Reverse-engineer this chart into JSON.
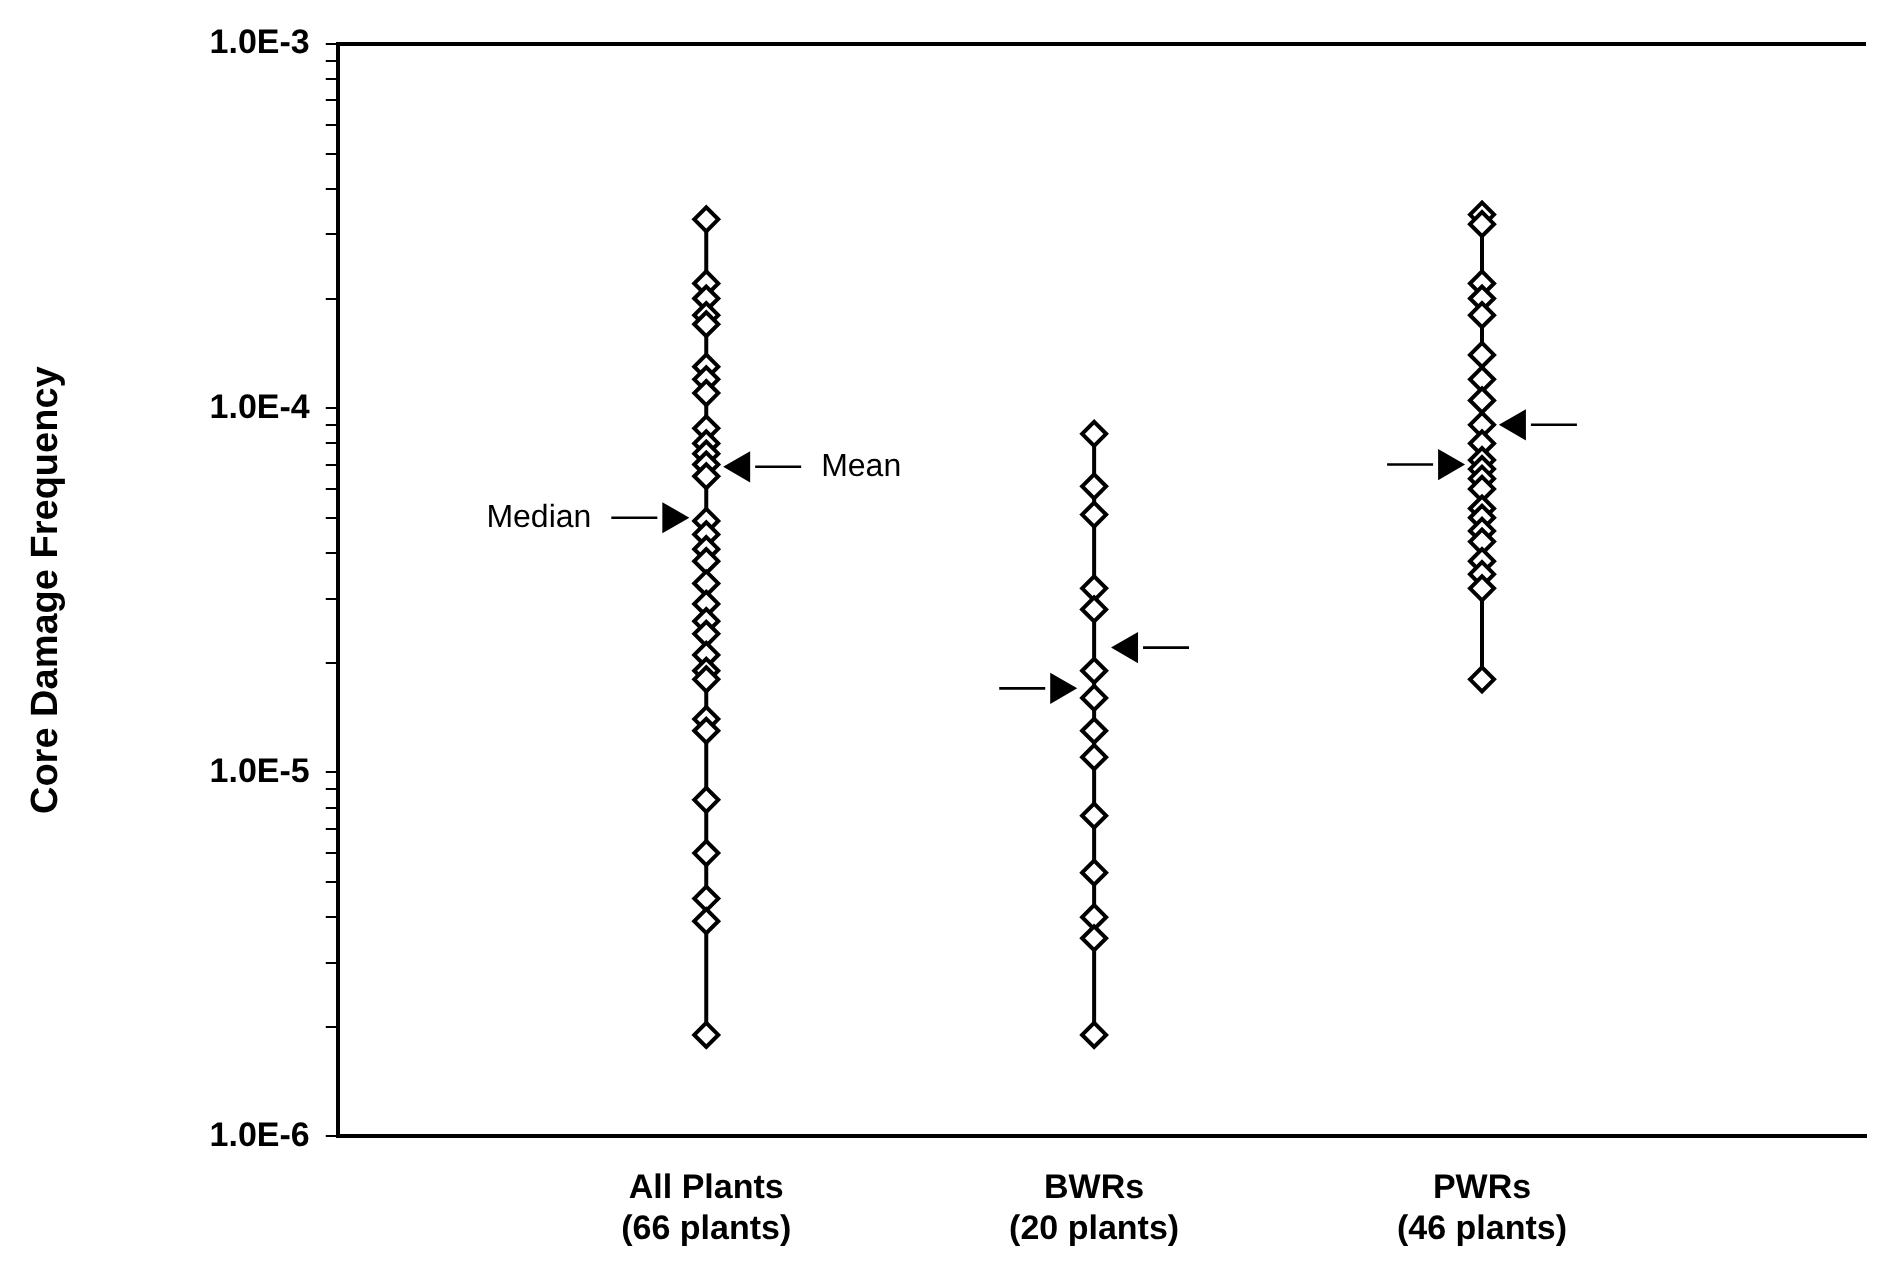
{
  "chart_data": {
    "type": "scatter",
    "ylabel": "Core Damage Frequency",
    "categories": [
      "All Plants\n(66 plants)",
      "BWRs\n(20 plants)",
      "PWRs\n(46 plants)"
    ],
    "log": "y",
    "ylim": [
      1e-06,
      0.001
    ],
    "yticks": [
      {
        "value": 1e-06,
        "label": "1.0E-6"
      },
      {
        "value": 2e-06,
        "label": null
      },
      {
        "value": 3e-06,
        "label": null
      },
      {
        "value": 4e-06,
        "label": null
      },
      {
        "value": 5e-06,
        "label": null
      },
      {
        "value": 6e-06,
        "label": null
      },
      {
        "value": 7e-06,
        "label": null
      },
      {
        "value": 8e-06,
        "label": null
      },
      {
        "value": 9e-06,
        "label": null
      },
      {
        "value": 1e-05,
        "label": "1.0E-5"
      },
      {
        "value": 2e-05,
        "label": null
      },
      {
        "value": 3e-05,
        "label": null
      },
      {
        "value": 4e-05,
        "label": null
      },
      {
        "value": 5e-05,
        "label": null
      },
      {
        "value": 6e-05,
        "label": null
      },
      {
        "value": 7e-05,
        "label": null
      },
      {
        "value": 8e-05,
        "label": null
      },
      {
        "value": 9e-05,
        "label": null
      },
      {
        "value": 0.0001,
        "label": "1.0E-4"
      },
      {
        "value": 0.0002,
        "label": null
      },
      {
        "value": 0.0003,
        "label": null
      },
      {
        "value": 0.0004,
        "label": null
      },
      {
        "value": 0.0005,
        "label": null
      },
      {
        "value": 0.0006,
        "label": null
      },
      {
        "value": 0.0007,
        "label": null
      },
      {
        "value": 0.0008,
        "label": null
      },
      {
        "value": 0.0009,
        "label": null
      },
      {
        "value": 0.001,
        "label": "1.0E-3"
      }
    ],
    "grid": false,
    "legend": false,
    "series": [
      {
        "type": "line",
        "line_style": "solid",
        "marker": "diamond",
        "color": "#000000",
        "x": [
          "All Plants\n(66 plants)",
          "All Plants\n(66 plants)",
          "All Plants\n(66 plants)",
          "All Plants\n(66 plants)",
          "All Plants\n(66 plants)",
          "All Plants\n(66 plants)",
          "All Plants\n(66 plants)",
          "All Plants\n(66 plants)",
          "All Plants\n(66 plants)",
          "All Plants\n(66 plants)",
          "All Plants\n(66 plants)",
          "All Plants\n(66 plants)",
          "All Plants\n(66 plants)",
          "All Plants\n(66 plants)",
          "All Plants\n(66 plants)",
          "All Plants\n(66 plants)",
          "All Plants\n(66 plants)",
          "All Plants\n(66 plants)",
          "All Plants\n(66 plants)",
          "All Plants\n(66 plants)",
          "All Plants\n(66 plants)",
          "All Plants\n(66 plants)",
          "All Plants\n(66 plants)",
          "All Plants\n(66 plants)",
          "All Plants\n(66 plants)",
          "All Plants\n(66 plants)",
          "All Plants\n(66 plants)",
          "All Plants\n(66 plants)",
          "All Plants\n(66 plants)",
          "All Plants\n(66 plants)",
          "All Plants\n(66 plants)",
          "BWRs\n(20 plants)",
          "BWRs\n(20 plants)",
          "BWRs\n(20 plants)",
          "BWRs\n(20 plants)",
          "BWRs\n(20 plants)",
          "BWRs\n(20 plants)",
          "BWRs\n(20 plants)",
          "BWRs\n(20 plants)",
          "BWRs\n(20 plants)",
          "BWRs\n(20 plants)",
          "BWRs\n(20 plants)",
          "BWRs\n(20 plants)",
          "BWRs\n(20 plants)",
          "BWRs\n(20 plants)",
          "PWRs\n(46 plants)",
          "PWRs\n(46 plants)",
          "PWRs\n(46 plants)",
          "PWRs\n(46 plants)",
          "PWRs\n(46 plants)",
          "PWRs\n(46 plants)",
          "PWRs\n(46 plants)",
          "PWRs\n(46 plants)",
          "PWRs\n(46 plants)",
          "PWRs\n(46 plants)",
          "PWRs\n(46 plants)",
          "PWRs\n(46 plants)",
          "PWRs\n(46 plants)",
          "PWRs\n(46 plants)",
          "PWRs\n(46 plants)",
          "PWRs\n(46 plants)",
          "PWRs\n(46 plants)",
          "PWRs\n(46 plants)",
          "PWRs\n(46 plants)",
          "PWRs\n(46 plants)",
          "PWRs\n(46 plants)",
          "PWRs\n(46 plants)"
        ],
        "values": [
          0.00033,
          0.00022,
          0.0002,
          0.00018,
          0.00017,
          0.00013,
          0.00012,
          0.00011,
          8.8e-05,
          8e-05,
          7.5e-05,
          7e-05,
          6.5e-05,
          4.9e-05,
          4.5e-05,
          4.1e-05,
          3.8e-05,
          3.3e-05,
          2.9e-05,
          2.6e-05,
          2.4e-05,
          2.1e-05,
          1.9e-05,
          1.8e-05,
          1.4e-05,
          1.3e-05,
          8.4e-06,
          6e-06,
          4.5e-06,
          3.9e-06,
          1.9e-06,
          8.5e-05,
          6.1e-05,
          5.1e-05,
          3.2e-05,
          2.8e-05,
          1.9e-05,
          1.6e-05,
          1.3e-05,
          1.1e-05,
          7.6e-06,
          5.3e-06,
          4e-06,
          3.5e-06,
          1.9e-06,
          0.00034,
          0.00032,
          0.00022,
          0.0002,
          0.00018,
          0.00014,
          0.00012,
          0.000105,
          9e-05,
          8e-05,
          7.2e-05,
          6.8e-05,
          6.4e-05,
          6e-05,
          5.3e-05,
          5e-05,
          4.6e-05,
          4.3e-05,
          3.8e-05,
          3.5e-05,
          3.2e-05,
          1.8e-05
        ]
      },
      {
        "marker": "triangle",
        "color": "#000000",
        "values": [
          6.9e-05,
          2.2e-05,
          9e-05
        ]
      },
      {
        "marker": "triangle",
        "color": "#000000",
        "values": [
          5e-05,
          1.7e-05,
          7e-05
        ]
      }
    ],
    "annotations": [
      "Mean",
      "Median"
    ]
  }
}
